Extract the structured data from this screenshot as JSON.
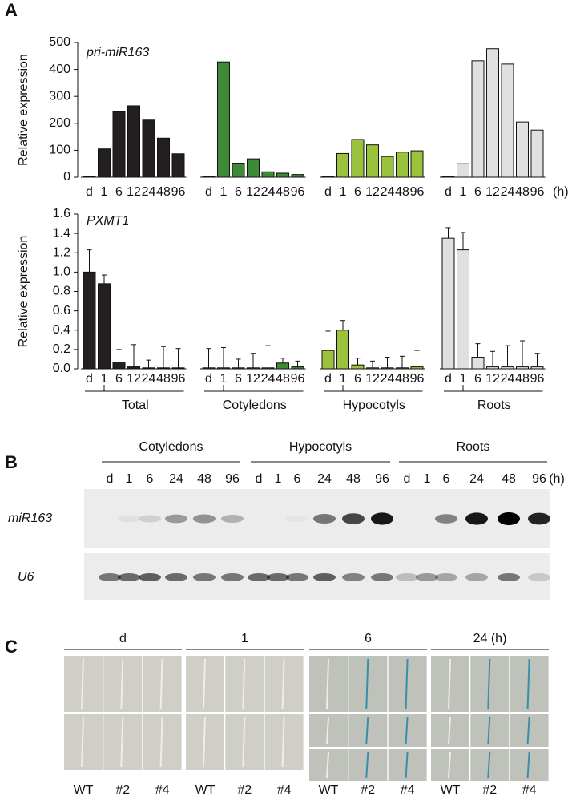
{
  "panel_a": {
    "label": "A"
  },
  "chart_data": [
    {
      "type": "bar",
      "title": "pri-miR163",
      "y_label": "Relative expression",
      "categories": [
        "d",
        "1",
        "6",
        "12",
        "24",
        "48",
        "96"
      ],
      "unit_label": "(h)",
      "ylim": [
        0,
        500
      ],
      "yticks": [
        0,
        100,
        200,
        300,
        400,
        500
      ],
      "series": [
        {
          "color": "#231f20",
          "values": [
            3,
            105,
            243,
            265,
            212,
            145,
            87
          ]
        },
        {
          "color": "#3d8b37",
          "values": [
            2,
            428,
            52,
            68,
            20,
            15,
            10
          ]
        },
        {
          "color": "#9bc23c",
          "values": [
            2,
            88,
            140,
            120,
            77,
            93,
            98
          ]
        },
        {
          "color": "#e0e0e0",
          "values": [
            3,
            50,
            432,
            477,
            420,
            205,
            175
          ]
        }
      ]
    },
    {
      "type": "bar",
      "title": "PXMT1",
      "y_label": "Relative expression",
      "categories": [
        "d",
        "1",
        "6",
        "12",
        "24",
        "48",
        "96"
      ],
      "ylim": [
        0,
        1.6
      ],
      "yticks": [
        {
          "value": 0,
          "label": "0.0"
        },
        0.2,
        0.4,
        0.6,
        0.8,
        {
          "value": 1,
          "label": "1.0"
        },
        1.2,
        1.4,
        1.6
      ],
      "series": [
        {
          "name": "Total",
          "color": "#231f20",
          "values": [
            1.0,
            0.88,
            0.07,
            0.02,
            0.01,
            0.01,
            0.01
          ],
          "errors": [
            0.23,
            0.09,
            0.13,
            0.23,
            0.08,
            0.22,
            0.2
          ]
        },
        {
          "name": "Cotyledons",
          "color": "#3d8b37",
          "values": [
            0.01,
            0.01,
            0.01,
            0.01,
            0.01,
            0.06,
            0.02
          ],
          "errors": [
            0.2,
            0.21,
            0.09,
            0.15,
            0.23,
            0.05,
            0.06
          ]
        },
        {
          "name": "Hypocotyls",
          "color": "#9bc23c",
          "values": [
            0.19,
            0.4,
            0.04,
            0.01,
            0.01,
            0.01,
            0.02
          ],
          "errors": [
            0.2,
            0.1,
            0.07,
            0.07,
            0.11,
            0.12,
            0.17
          ]
        },
        {
          "name": "Roots",
          "color": "#e0e0e0",
          "values": [
            1.35,
            1.23,
            0.12,
            0.02,
            0.02,
            0.02,
            0.02
          ],
          "errors": [
            0.11,
            0.18,
            0.14,
            0.16,
            0.22,
            0.27,
            0.14
          ]
        }
      ]
    }
  ],
  "panel_b": {
    "label": "B",
    "groups": [
      "Cotyledons",
      "Hypocotyls",
      "Roots"
    ],
    "lanes": [
      [
        "d",
        "1",
        "6",
        "24",
        "48",
        "96"
      ],
      [
        "d",
        "1",
        "6",
        "24",
        "48",
        "96"
      ],
      [
        "d",
        "1",
        "6",
        "24",
        "48",
        "96"
      ]
    ],
    "unit": "(h)",
    "rows": [
      "miR163",
      "U6"
    ]
  },
  "panel_c": {
    "label": "C",
    "headers": [
      "d",
      "1",
      "6",
      "24 (h)"
    ],
    "genotypes": [
      [
        "WT",
        "#2",
        "#4"
      ],
      [
        "WT",
        "#2",
        "#4"
      ],
      [
        "WT",
        "#2",
        "#4"
      ],
      [
        "WT",
        "#2",
        "#4"
      ]
    ]
  }
}
